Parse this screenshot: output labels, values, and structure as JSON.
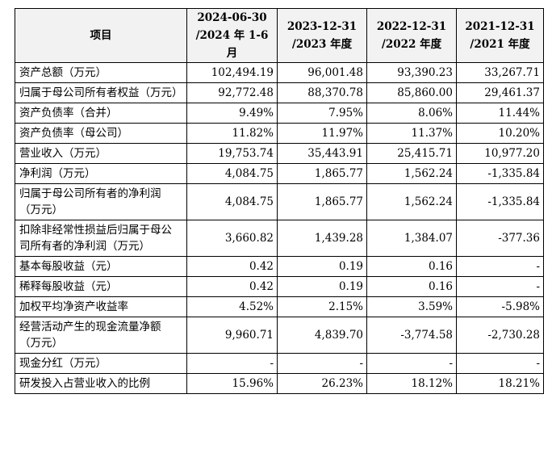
{
  "table": {
    "header": {
      "item": "项目",
      "periods": [
        {
          "line1": "2024-06-30",
          "line2": "/2024 年 1-6 月"
        },
        {
          "line1": "2023-12-31",
          "line2": "/2023 年度"
        },
        {
          "line1": "2022-12-31",
          "line2": "/2022 年度"
        },
        {
          "line1": "2021-12-31",
          "line2": "/2021 年度"
        }
      ]
    },
    "rows": [
      {
        "label": "资产总额（万元）",
        "values": [
          "102,494.19",
          "96,001.48",
          "93,390.23",
          "33,267.71"
        ]
      },
      {
        "label": "归属于母公司所有者权益（万元）",
        "values": [
          "92,772.48",
          "88,370.78",
          "85,860.00",
          "29,461.37"
        ]
      },
      {
        "label": "资产负债率（合并）",
        "values": [
          "9.49%",
          "7.95%",
          "8.06%",
          "11.44%"
        ]
      },
      {
        "label": "资产负债率（母公司）",
        "values": [
          "11.82%",
          "11.97%",
          "11.37%",
          "10.20%"
        ]
      },
      {
        "label": "营业收入（万元）",
        "values": [
          "19,753.74",
          "35,443.91",
          "25,415.71",
          "10,977.20"
        ]
      },
      {
        "label": "净利润（万元）",
        "values": [
          "4,084.75",
          "1,865.77",
          "1,562.24",
          "-1,335.84"
        ]
      },
      {
        "label": "归属于母公司所有者的净利润（万元）",
        "values": [
          "4,084.75",
          "1,865.77",
          "1,562.24",
          "-1,335.84"
        ]
      },
      {
        "label": "扣除非经常性损益后归属于母公司所有者的净利润（万元）",
        "values": [
          "3,660.82",
          "1,439.28",
          "1,384.07",
          "-377.36"
        ]
      },
      {
        "label": "基本每股收益（元）",
        "values": [
          "0.42",
          "0.19",
          "0.16",
          "-"
        ]
      },
      {
        "label": "稀释每股收益（元）",
        "values": [
          "0.42",
          "0.19",
          "0.16",
          "-"
        ]
      },
      {
        "label": "加权平均净资产收益率",
        "values": [
          "4.52%",
          "2.15%",
          "3.59%",
          "-5.98%"
        ]
      },
      {
        "label": "经营活动产生的现金流量净额（万元）",
        "values": [
          "9,960.71",
          "4,839.70",
          "-3,774.58",
          "-2,730.28"
        ]
      },
      {
        "label": "现金分红（万元）",
        "values": [
          "-",
          "-",
          "-",
          "-"
        ]
      },
      {
        "label": "研发投入占营业收入的比例",
        "values": [
          "15.96%",
          "26.23%",
          "18.12%",
          "18.21%"
        ]
      }
    ]
  }
}
